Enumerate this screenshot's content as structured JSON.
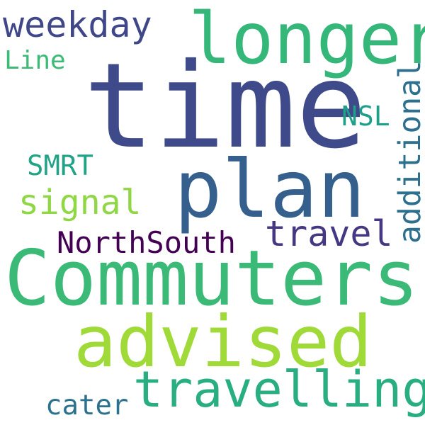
{
  "words": {
    "time": {
      "text": "time",
      "color": "#3e4a89"
    },
    "longer": {
      "text": "longer",
      "color": "#35b779"
    },
    "weekday": {
      "text": "weekday",
      "color": "#3f4788"
    },
    "line": {
      "text": "Line",
      "color": "#3bbb75"
    },
    "nsl": {
      "text": "NSL",
      "color": "#1f9e89"
    },
    "additional": {
      "text": "additional",
      "color": "#2d708e"
    },
    "smrt": {
      "text": "SMRT",
      "color": "#20a386"
    },
    "plan": {
      "text": "plan",
      "color": "#35608d"
    },
    "signal": {
      "text": "signal",
      "color": "#8fd744"
    },
    "travel": {
      "text": "travel",
      "color": "#453781"
    },
    "northsouth": {
      "text": "NorthSouth",
      "color": "#440154"
    },
    "commuters": {
      "text": "Commuters",
      "color": "#3aba76"
    },
    "advised": {
      "text": "advised",
      "color": "#a0da39"
    },
    "travelling": {
      "text": "travelling",
      "color": "#28ae80"
    },
    "cater": {
      "text": "cater",
      "color": "#2c728e"
    }
  }
}
